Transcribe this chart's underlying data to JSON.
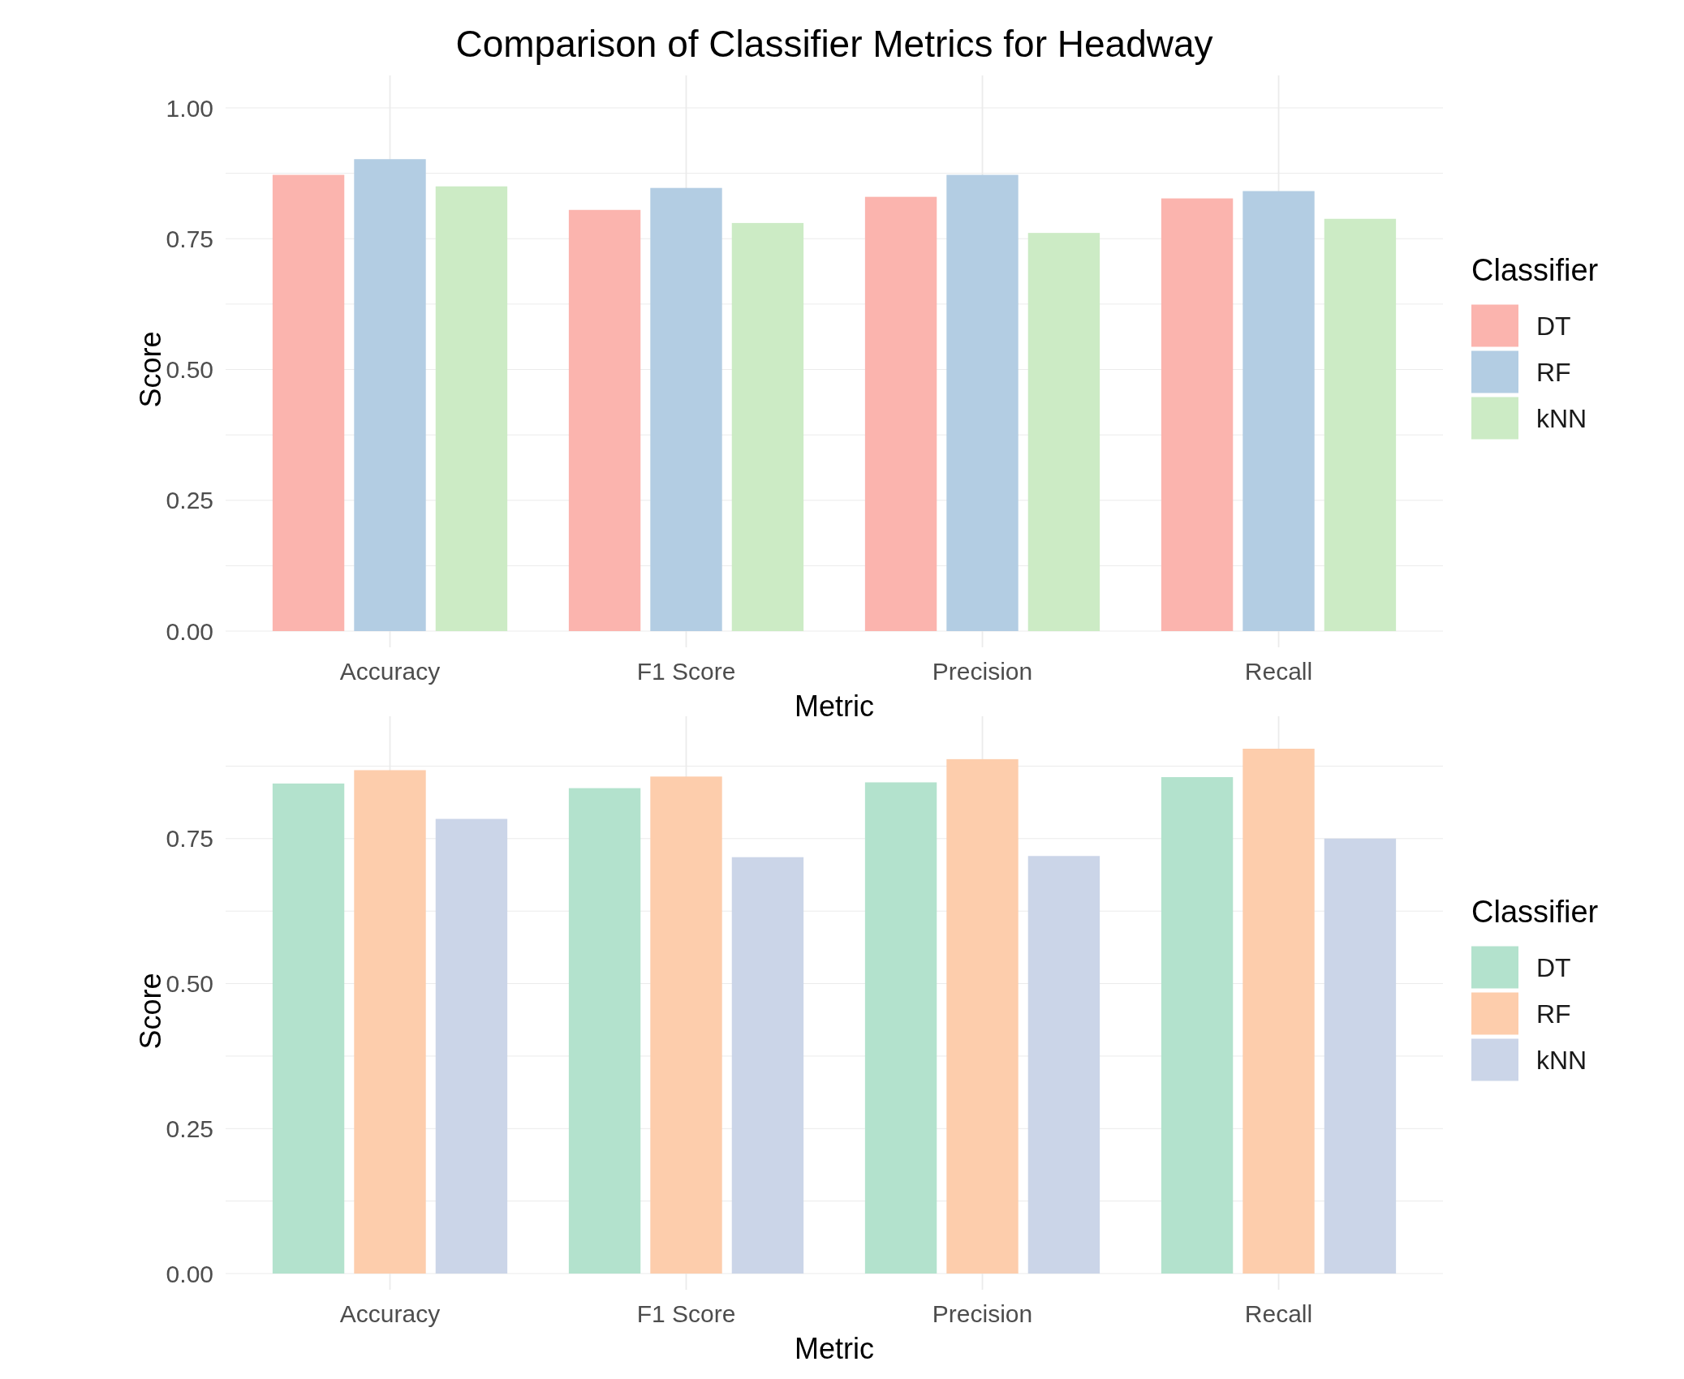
{
  "chart_data": [
    {
      "type": "bar",
      "title": "Comparison of Classifier Metrics for Headway",
      "xlabel": "Metric",
      "ylabel": "Score",
      "legend_title": "Classifier",
      "legend": "right",
      "grid": true,
      "categories": [
        "Accuracy",
        "F1 Score",
        "Precision",
        "Recall"
      ],
      "ylim": [
        0,
        1.0
      ],
      "yticks": [
        {
          "value": 0,
          "label": "0.00"
        },
        {
          "value": 0.125,
          "label": null
        },
        {
          "value": 0.25,
          "label": "0.25"
        },
        {
          "value": 0.375,
          "label": null
        },
        {
          "value": 0.5,
          "label": "0.50"
        },
        {
          "value": 0.625,
          "label": null
        },
        {
          "value": 0.75,
          "label": "0.75"
        },
        {
          "value": 0.875,
          "label": null
        },
        {
          "value": 1.0,
          "label": "1.00"
        }
      ],
      "series": [
        {
          "name": "DT",
          "color": "#fbb4ae",
          "values": [
            0.872,
            0.805,
            0.83,
            0.827
          ]
        },
        {
          "name": "RF",
          "color": "#b3cde3",
          "values": [
            0.902,
            0.847,
            0.872,
            0.841
          ]
        },
        {
          "name": "kNN",
          "color": "#ccebc5",
          "values": [
            0.85,
            0.78,
            0.761,
            0.788
          ]
        }
      ]
    },
    {
      "type": "bar",
      "xlabel": "Metric",
      "ylabel": "Score",
      "legend_title": "Classifier",
      "legend": "right",
      "grid": true,
      "categories": [
        "Accuracy",
        "F1 Score",
        "Precision",
        "Recall"
      ],
      "ylim": [
        0,
        0.905
      ],
      "yticks": [
        {
          "value": 0,
          "label": "0.00"
        },
        {
          "value": 0.125,
          "label": null
        },
        {
          "value": 0.25,
          "label": "0.25"
        },
        {
          "value": 0.375,
          "label": null
        },
        {
          "value": 0.5,
          "label": "0.50"
        },
        {
          "value": 0.625,
          "label": null
        },
        {
          "value": 0.75,
          "label": "0.75"
        },
        {
          "value": 0.875,
          "label": null
        }
      ],
      "series": [
        {
          "name": "DT",
          "color": "#b3e2cd",
          "values": [
            0.845,
            0.837,
            0.847,
            0.856
          ]
        },
        {
          "name": "RF",
          "color": "#fdcdac",
          "values": [
            0.868,
            0.857,
            0.887,
            0.905
          ]
        },
        {
          "name": "kNN",
          "color": "#cbd5e8",
          "values": [
            0.784,
            0.718,
            0.72,
            0.75
          ]
        }
      ]
    }
  ]
}
